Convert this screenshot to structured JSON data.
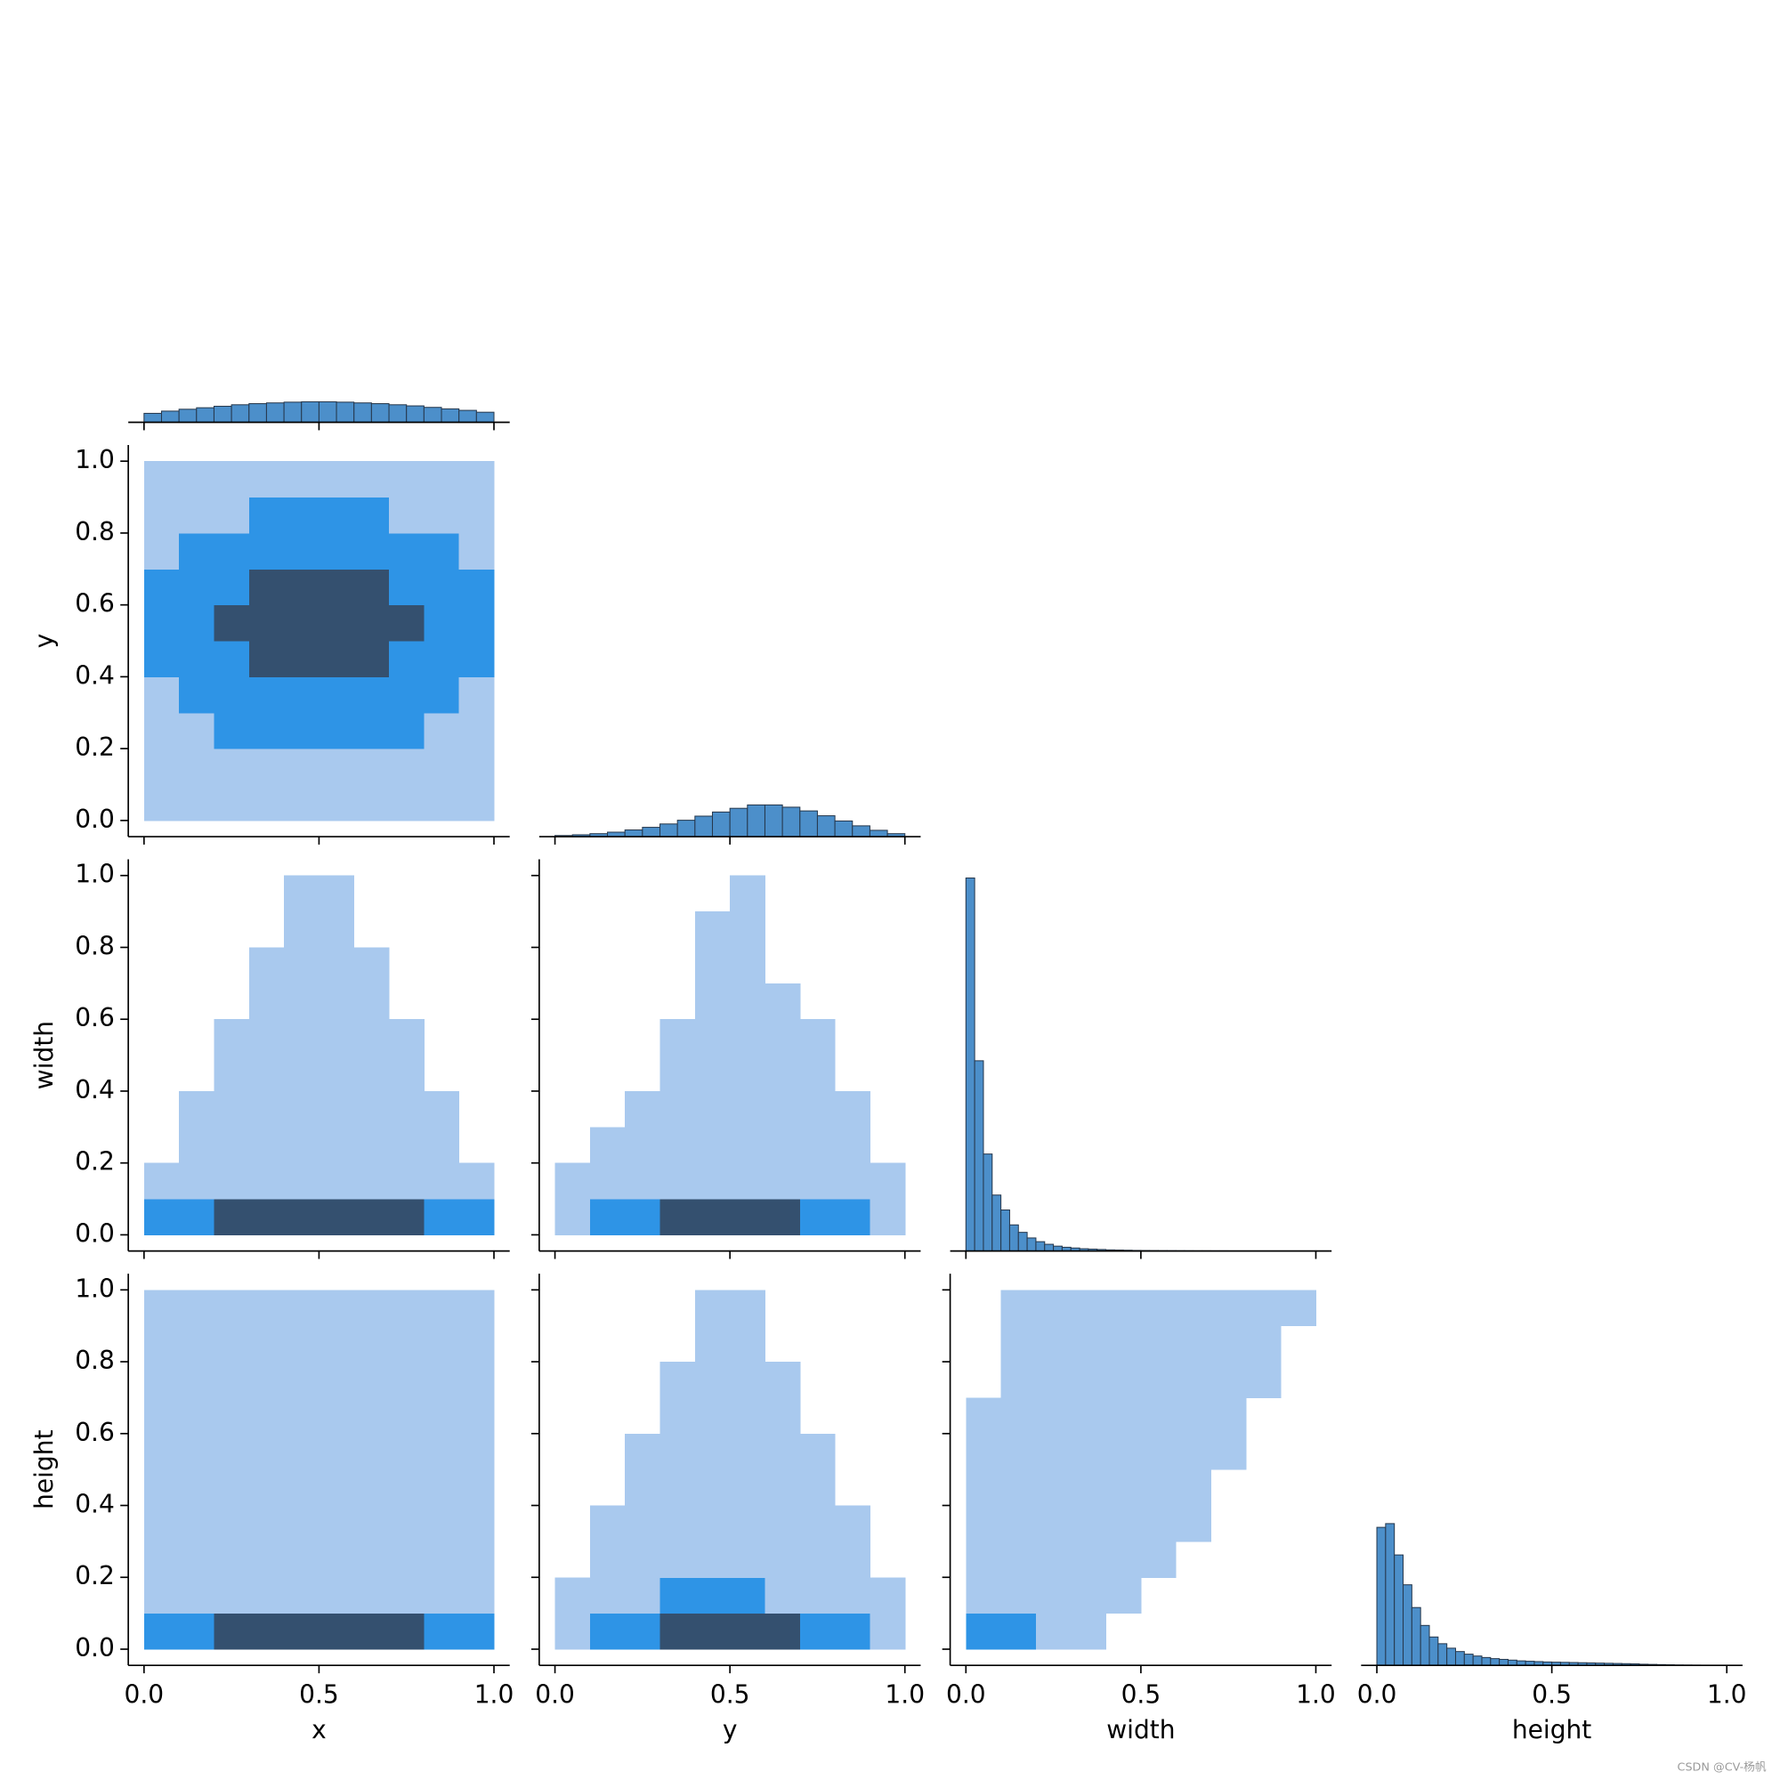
{
  "chart_data": [
    {
      "type": "histogram",
      "bins": [
        0,
        0.05,
        0.1,
        0.15,
        0.2,
        0.25,
        0.3,
        0.35,
        0.4,
        0.45,
        0.5,
        0.55,
        0.6,
        0.65,
        0.7,
        0.75,
        0.8,
        0.85,
        0.9,
        0.95,
        1
      ],
      "values": [
        2.4,
        3.0,
        3.5,
        3.9,
        4.3,
        4.7,
        5.0,
        5.2,
        5.4,
        5.5,
        5.5,
        5.4,
        5.2,
        5.0,
        4.7,
        4.4,
        4.0,
        3.6,
        3.2,
        2.7
      ],
      "color": "#4c8fca",
      "edgecolor": "#26384d",
      "xlim": [
        -0.045,
        1.045
      ],
      "ylim": [
        0,
        105
      ],
      "xticks": [
        0,
        0.5,
        1
      ],
      "xtick_labels": false
    },
    {
      "type": "hist2d",
      "xbins": [
        0,
        0.1,
        0.2,
        0.3,
        0.4,
        0.5,
        0.6,
        0.7,
        0.8,
        0.9,
        1
      ],
      "ybins": [
        0,
        0.1,
        0.2,
        0.3,
        0.4,
        0.5,
        0.6,
        0.7,
        0.8,
        0.9,
        1
      ],
      "counts": [
        [
          1,
          1,
          1,
          1,
          1,
          1,
          1,
          1,
          1,
          1
        ],
        [
          1,
          1,
          1,
          1,
          1,
          1,
          1,
          1,
          1,
          1
        ],
        [
          1,
          1,
          2,
          2,
          2,
          2,
          2,
          2,
          1,
          1
        ],
        [
          1,
          2,
          2,
          2,
          2,
          2,
          2,
          2,
          2,
          1
        ],
        [
          2,
          2,
          2,
          3,
          3,
          3,
          3,
          2,
          2,
          2
        ],
        [
          2,
          2,
          3,
          3,
          3,
          3,
          3,
          3,
          2,
          2
        ],
        [
          2,
          2,
          2,
          3,
          3,
          3,
          3,
          2,
          2,
          2
        ],
        [
          1,
          2,
          2,
          2,
          2,
          2,
          2,
          2,
          2,
          1
        ],
        [
          1,
          1,
          1,
          2,
          2,
          2,
          2,
          1,
          1,
          1
        ],
        [
          1,
          1,
          1,
          1,
          1,
          1,
          1,
          1,
          1,
          1
        ]
      ],
      "cmap": [
        "#a9c9ee",
        "#2e94e6",
        "#34506f"
      ],
      "xlim": [
        -0.045,
        1.045
      ],
      "ylim": [
        -0.045,
        1.045
      ],
      "xticks": [
        0,
        0.5,
        1
      ],
      "xtick_labels": false,
      "yticks": [
        {
          "value": 0,
          "label": "0.0"
        },
        0.2,
        0.4,
        0.6,
        0.8,
        {
          "value": 1,
          "label": "1.0"
        }
      ],
      "ytick_labels": true,
      "ylabel": "y"
    },
    {
      "type": "histogram",
      "bins": [
        0,
        0.05,
        0.1,
        0.15,
        0.2,
        0.25,
        0.3,
        0.35,
        0.4,
        0.45,
        0.5,
        0.55,
        0.6,
        0.65,
        0.7,
        0.75,
        0.8,
        0.85,
        0.9,
        0.95,
        1
      ],
      "values": [
        0.3,
        0.5,
        0.8,
        1.2,
        1.8,
        2.5,
        3.4,
        4.4,
        5.5,
        6.6,
        7.6,
        8.5,
        8.5,
        7.9,
        6.9,
        5.6,
        4.2,
        2.9,
        1.7,
        0.8
      ],
      "color": "#4c8fca",
      "edgecolor": "#26384d",
      "xlim": [
        -0.045,
        1.045
      ],
      "ylim": [
        0,
        105
      ],
      "xticks": [
        0,
        0.5,
        1
      ],
      "xtick_labels": false
    },
    {
      "type": "hist2d",
      "xbins": [
        0,
        0.1,
        0.2,
        0.3,
        0.4,
        0.5,
        0.6,
        0.7,
        0.8,
        0.9,
        1
      ],
      "ybins": [
        0,
        0.1,
        0.2,
        0.3,
        0.4,
        0.5,
        0.6,
        0.7,
        0.8,
        0.9,
        1
      ],
      "counts": [
        [
          2,
          2,
          3,
          3,
          3,
          3,
          3,
          3,
          2,
          2
        ],
        [
          1,
          1,
          1,
          1,
          1,
          1,
          1,
          1,
          1,
          1
        ],
        [
          0,
          1,
          1,
          1,
          1,
          1,
          1,
          1,
          1,
          0
        ],
        [
          0,
          1,
          1,
          1,
          1,
          1,
          1,
          1,
          1,
          0
        ],
        [
          0,
          0,
          1,
          1,
          1,
          1,
          1,
          1,
          0,
          0
        ],
        [
          0,
          0,
          1,
          1,
          1,
          1,
          1,
          1,
          0,
          0
        ],
        [
          0,
          0,
          0,
          1,
          1,
          1,
          1,
          0,
          0,
          0
        ],
        [
          0,
          0,
          0,
          1,
          1,
          1,
          1,
          0,
          0,
          0
        ],
        [
          0,
          0,
          0,
          0,
          1,
          1,
          0,
          0,
          0,
          0
        ],
        [
          0,
          0,
          0,
          0,
          1,
          1,
          0,
          0,
          0,
          0
        ]
      ],
      "cmap": [
        "#a9c9ee",
        "#2e94e6",
        "#34506f"
      ],
      "xlim": [
        -0.045,
        1.045
      ],
      "ylim": [
        -0.045,
        1.045
      ],
      "xticks": [
        0,
        0.5,
        1
      ],
      "xtick_labels": false,
      "yticks": [
        {
          "value": 0,
          "label": "0.0"
        },
        0.2,
        0.4,
        0.6,
        0.8,
        {
          "value": 1,
          "label": "1.0"
        }
      ],
      "ytick_labels": true,
      "ylabel": "width"
    },
    {
      "type": "hist2d",
      "xbins": [
        0,
        0.1,
        0.2,
        0.3,
        0.4,
        0.5,
        0.6,
        0.7,
        0.8,
        0.9,
        1
      ],
      "ybins": [
        0,
        0.1,
        0.2,
        0.3,
        0.4,
        0.5,
        0.6,
        0.7,
        0.8,
        0.9,
        1
      ],
      "counts": [
        [
          1,
          2,
          2,
          3,
          3,
          3,
          3,
          2,
          2,
          1
        ],
        [
          1,
          1,
          1,
          1,
          1,
          1,
          1,
          1,
          1,
          1
        ],
        [
          0,
          1,
          1,
          1,
          1,
          1,
          1,
          1,
          1,
          0
        ],
        [
          0,
          0,
          1,
          1,
          1,
          1,
          1,
          1,
          1,
          0
        ],
        [
          0,
          0,
          0,
          1,
          1,
          1,
          1,
          1,
          0,
          0
        ],
        [
          0,
          0,
          0,
          1,
          1,
          1,
          1,
          1,
          0,
          0
        ],
        [
          0,
          0,
          0,
          0,
          1,
          1,
          1,
          0,
          0,
          0
        ],
        [
          0,
          0,
          0,
          0,
          1,
          1,
          0,
          0,
          0,
          0
        ],
        [
          0,
          0,
          0,
          0,
          1,
          1,
          0,
          0,
          0,
          0
        ],
        [
          0,
          0,
          0,
          0,
          0,
          1,
          0,
          0,
          0,
          0
        ]
      ],
      "cmap": [
        "#a9c9ee",
        "#2e94e6",
        "#34506f"
      ],
      "xlim": [
        -0.045,
        1.045
      ],
      "ylim": [
        -0.045,
        1.045
      ],
      "xticks": [
        0,
        0.5,
        1
      ],
      "xtick_labels": false,
      "yticks": [
        0,
        0.2,
        0.4,
        0.6,
        0.8,
        1
      ],
      "ytick_labels": false
    },
    {
      "type": "histogram",
      "bins": [
        0,
        0.025,
        0.05,
        0.075,
        0.1,
        0.125,
        0.15,
        0.175,
        0.2,
        0.225,
        0.25,
        0.275,
        0.3,
        0.325,
        0.35,
        0.375,
        0.4,
        0.425,
        0.45,
        0.475,
        0.5,
        0.525,
        0.55,
        0.575,
        0.6,
        0.625,
        0.65,
        0.675,
        0.7,
        0.725,
        0.75,
        0.775,
        0.8,
        0.825,
        0.85,
        0.875,
        0.9,
        0.925,
        0.95,
        0.975,
        1
      ],
      "values": [
        100,
        51,
        26,
        15,
        11,
        7,
        5,
        3.5,
        2.5,
        1.8,
        1.3,
        1,
        0.8,
        0.6,
        0.5,
        0.4,
        0.3,
        0.25,
        0.2,
        0.15,
        0.12,
        0.1,
        0.08,
        0.07,
        0.06,
        0.05,
        0.04,
        0.04,
        0.03,
        0.03,
        0.02,
        0.02,
        0.02,
        0.01,
        0.01,
        0.01,
        0.01,
        0.01,
        0.01,
        0.01
      ],
      "color": "#4c8fca",
      "edgecolor": "#26384d",
      "xlim": [
        -0.045,
        1.045
      ],
      "ylim": [
        0,
        105
      ],
      "xticks": [
        0,
        0.5,
        1
      ],
      "xtick_labels": false
    },
    {
      "type": "hist2d",
      "xbins": [
        0,
        0.1,
        0.2,
        0.3,
        0.4,
        0.5,
        0.6,
        0.7,
        0.8,
        0.9,
        1
      ],
      "ybins": [
        0,
        0.1,
        0.2,
        0.3,
        0.4,
        0.5,
        0.6,
        0.7,
        0.8,
        0.9,
        1
      ],
      "counts": [
        [
          2,
          2,
          3,
          3,
          3,
          3,
          3,
          3,
          2,
          2
        ],
        [
          1,
          1,
          1,
          1,
          1,
          1,
          1,
          1,
          1,
          1
        ],
        [
          1,
          1,
          1,
          1,
          1,
          1,
          1,
          1,
          1,
          1
        ],
        [
          1,
          1,
          1,
          1,
          1,
          1,
          1,
          1,
          1,
          1
        ],
        [
          1,
          1,
          1,
          1,
          1,
          1,
          1,
          1,
          1,
          1
        ],
        [
          1,
          1,
          1,
          1,
          1,
          1,
          1,
          1,
          1,
          1
        ],
        [
          1,
          1,
          1,
          1,
          1,
          1,
          1,
          1,
          1,
          1
        ],
        [
          1,
          1,
          1,
          1,
          1,
          1,
          1,
          1,
          1,
          1
        ],
        [
          1,
          1,
          1,
          1,
          1,
          1,
          1,
          1,
          1,
          1
        ],
        [
          1,
          1,
          1,
          1,
          1,
          1,
          1,
          1,
          1,
          1
        ]
      ],
      "cmap": [
        "#a9c9ee",
        "#2e94e6",
        "#34506f"
      ],
      "xlim": [
        -0.045,
        1.045
      ],
      "ylim": [
        -0.045,
        1.045
      ],
      "xticks": [
        {
          "value": 0,
          "label": "0.0"
        },
        0.5,
        {
          "value": 1,
          "label": "1.0"
        }
      ],
      "xtick_labels": true,
      "xlabel": "x",
      "yticks": [
        {
          "value": 0,
          "label": "0.0"
        },
        0.2,
        0.4,
        0.6,
        0.8,
        {
          "value": 1,
          "label": "1.0"
        }
      ],
      "ytick_labels": true,
      "ylabel": "height"
    },
    {
      "type": "hist2d",
      "xbins": [
        0,
        0.1,
        0.2,
        0.3,
        0.4,
        0.5,
        0.6,
        0.7,
        0.8,
        0.9,
        1
      ],
      "ybins": [
        0,
        0.1,
        0.2,
        0.3,
        0.4,
        0.5,
        0.6,
        0.7,
        0.8,
        0.9,
        1
      ],
      "counts": [
        [
          1,
          2,
          2,
          3,
          3,
          3,
          3,
          2,
          2,
          1
        ],
        [
          1,
          1,
          1,
          2,
          2,
          2,
          1,
          1,
          1,
          1
        ],
        [
          0,
          1,
          1,
          1,
          1,
          1,
          1,
          1,
          1,
          0
        ],
        [
          0,
          1,
          1,
          1,
          1,
          1,
          1,
          1,
          1,
          0
        ],
        [
          0,
          0,
          1,
          1,
          1,
          1,
          1,
          1,
          0,
          0
        ],
        [
          0,
          0,
          1,
          1,
          1,
          1,
          1,
          1,
          0,
          0
        ],
        [
          0,
          0,
          0,
          1,
          1,
          1,
          1,
          0,
          0,
          0
        ],
        [
          0,
          0,
          0,
          1,
          1,
          1,
          1,
          0,
          0,
          0
        ],
        [
          0,
          0,
          0,
          0,
          1,
          1,
          0,
          0,
          0,
          0
        ],
        [
          0,
          0,
          0,
          0,
          1,
          1,
          0,
          0,
          0,
          0
        ]
      ],
      "cmap": [
        "#a9c9ee",
        "#2e94e6",
        "#34506f"
      ],
      "xlim": [
        -0.045,
        1.045
      ],
      "ylim": [
        -0.045,
        1.045
      ],
      "xticks": [
        {
          "value": 0,
          "label": "0.0"
        },
        0.5,
        {
          "value": 1,
          "label": "1.0"
        }
      ],
      "xtick_labels": true,
      "xlabel": "y",
      "yticks": [
        0,
        0.2,
        0.4,
        0.6,
        0.8,
        1
      ],
      "ytick_labels": false
    },
    {
      "type": "hist2d",
      "xbins": [
        0,
        0.1,
        0.2,
        0.3,
        0.4,
        0.5,
        0.6,
        0.7,
        0.8,
        0.9,
        1
      ],
      "ybins": [
        0,
        0.1,
        0.2,
        0.3,
        0.4,
        0.5,
        0.6,
        0.7,
        0.8,
        0.9,
        1
      ],
      "counts": [
        [
          2,
          2,
          1,
          1,
          0,
          0,
          0,
          0,
          0,
          0
        ],
        [
          1,
          1,
          1,
          1,
          1,
          0,
          0,
          0,
          0,
          0
        ],
        [
          1,
          1,
          1,
          1,
          1,
          1,
          0,
          0,
          0,
          0
        ],
        [
          1,
          1,
          1,
          1,
          1,
          1,
          1,
          0,
          0,
          0
        ],
        [
          1,
          1,
          1,
          1,
          1,
          1,
          1,
          0,
          0,
          0
        ],
        [
          1,
          1,
          1,
          1,
          1,
          1,
          1,
          1,
          0,
          0
        ],
        [
          1,
          1,
          1,
          1,
          1,
          1,
          1,
          1,
          0,
          0
        ],
        [
          0,
          1,
          1,
          1,
          1,
          1,
          1,
          1,
          1,
          0
        ],
        [
          0,
          1,
          1,
          1,
          1,
          1,
          1,
          1,
          1,
          0
        ],
        [
          0,
          1,
          1,
          1,
          1,
          1,
          1,
          1,
          1,
          1
        ]
      ],
      "cmap": [
        "#a9c9ee",
        "#2e94e6",
        "#34506f"
      ],
      "xlim": [
        -0.045,
        1.045
      ],
      "ylim": [
        -0.045,
        1.045
      ],
      "xticks": [
        {
          "value": 0,
          "label": "0.0"
        },
        0.5,
        {
          "value": 1,
          "label": "1.0"
        }
      ],
      "xtick_labels": true,
      "xlabel": "width",
      "yticks": [
        0,
        0.2,
        0.4,
        0.6,
        0.8,
        1
      ],
      "ytick_labels": false
    },
    {
      "type": "histogram",
      "bins": [
        0,
        0.025,
        0.05,
        0.075,
        0.1,
        0.125,
        0.15,
        0.175,
        0.2,
        0.225,
        0.25,
        0.275,
        0.3,
        0.325,
        0.35,
        0.375,
        0.4,
        0.425,
        0.45,
        0.475,
        0.5,
        0.525,
        0.55,
        0.575,
        0.6,
        0.625,
        0.65,
        0.675,
        0.7,
        0.725,
        0.75,
        0.775,
        0.8,
        0.825,
        0.85,
        0.875,
        0.9,
        0.925,
        0.95,
        0.975,
        1
      ],
      "values": [
        37,
        38,
        29.6,
        21.6,
        15.5,
        10.7,
        7.6,
        5.8,
        4.6,
        3.7,
        3.0,
        2.5,
        2.1,
        1.8,
        1.6,
        1.4,
        1.2,
        1.1,
        1.0,
        0.9,
        0.85,
        0.8,
        0.75,
        0.7,
        0.65,
        0.6,
        0.55,
        0.5,
        0.45,
        0.4,
        0.3,
        0.25,
        0.2,
        0.15,
        0.1,
        0.08,
        0.06,
        0.04,
        0.03,
        0.02
      ],
      "color": "#4c8fca",
      "edgecolor": "#26384d",
      "xlim": [
        -0.045,
        1.045
      ],
      "ylim": [
        0,
        105
      ],
      "xticks": [
        {
          "value": 0,
          "label": "0.0"
        },
        0.5,
        {
          "value": 1,
          "label": "1.0"
        }
      ],
      "xtick_labels": true,
      "xlabel": "height"
    }
  ],
  "watermark": "CSDN @CV-杨帆"
}
